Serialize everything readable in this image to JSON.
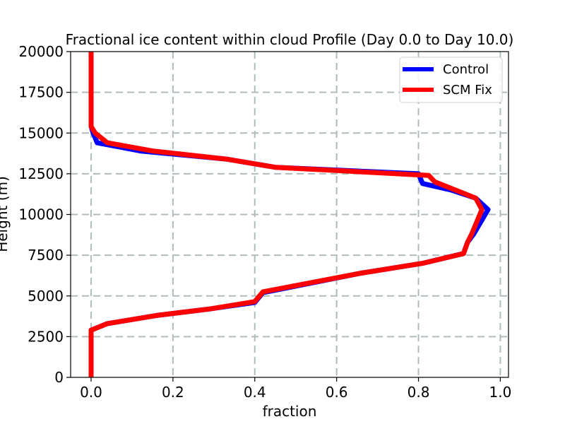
{
  "chart_data": {
    "type": "line",
    "title": "Fractional ice content within cloud Profile (Day 0.0 to Day 10.0)",
    "xlabel": "fraction",
    "ylabel": "Height (m)",
    "xlim": [
      -0.05,
      1.02
    ],
    "ylim": [
      0,
      20000
    ],
    "xticks": [
      0.0,
      0.2,
      0.4,
      0.6,
      0.8,
      1.0
    ],
    "xtick_labels": [
      "0.0",
      "0.2",
      "0.4",
      "0.6",
      "0.8",
      "1.0"
    ],
    "yticks": [
      0,
      2500,
      5000,
      7500,
      10000,
      12500,
      15000,
      17500,
      20000
    ],
    "ytick_labels": [
      "0",
      "2500",
      "5000",
      "7500",
      "10000",
      "12500",
      "15000",
      "17500",
      "20000"
    ],
    "grid": true,
    "grid_style": "dashed",
    "legend_position": "upper right",
    "series": [
      {
        "name": "Control",
        "color": "#0000ff",
        "x": [
          0.0,
          0.0,
          0.04,
          0.16,
          0.29,
          0.4,
          0.42,
          0.66,
          0.81,
          0.91,
          0.92,
          0.935,
          0.97,
          0.94,
          0.88,
          0.81,
          0.8,
          0.45,
          0.33,
          0.12,
          0.015,
          0.005,
          0.0,
          0.0
        ],
        "y": [
          0,
          2900,
          3300,
          3800,
          4200,
          4600,
          5200,
          6400,
          7000,
          7600,
          8300,
          8800,
          10300,
          11000,
          11500,
          11900,
          12500,
          12900,
          13400,
          13900,
          14400,
          15000,
          15400,
          20000
        ]
      },
      {
        "name": "SCM Fix",
        "color": "#ff0000",
        "x": [
          0.0,
          0.0,
          0.04,
          0.16,
          0.29,
          0.4,
          0.42,
          0.66,
          0.81,
          0.91,
          0.92,
          0.93,
          0.955,
          0.94,
          0.89,
          0.84,
          0.825,
          0.45,
          0.33,
          0.15,
          0.04,
          0.01,
          0.0,
          0.0
        ],
        "y": [
          0,
          2900,
          3300,
          3800,
          4200,
          4650,
          5250,
          6400,
          7000,
          7600,
          8300,
          8800,
          10300,
          11000,
          11500,
          12000,
          12400,
          12900,
          13400,
          13900,
          14400,
          15000,
          15400,
          20000
        ]
      }
    ]
  }
}
